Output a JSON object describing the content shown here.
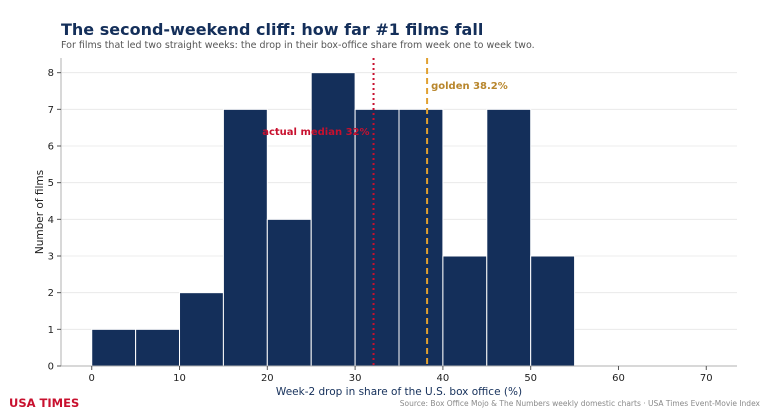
{
  "header": {
    "title": "The second-weekend cliff: how far #1 films fall",
    "subtitle": "For films that led two straight weeks: the drop in their box-office share from week one to week two."
  },
  "footer": {
    "brand": "USA TIMES",
    "source": "Source: Box Office Mojo & The Numbers weekly domestic charts · USA Times Event-Movie Index"
  },
  "colors": {
    "bars": "#142f5a",
    "median": "#c8102e",
    "golden": "#e0a030",
    "golden_text": "#b8862c",
    "grid": "#e6e6e6",
    "xlabel": "#142f5a"
  },
  "chart_data": {
    "type": "bar",
    "bins": [
      {
        "start": 0,
        "end": 5,
        "count": 1
      },
      {
        "start": 5,
        "end": 10,
        "count": 1
      },
      {
        "start": 10,
        "end": 15,
        "count": 2
      },
      {
        "start": 15,
        "end": 20,
        "count": 7
      },
      {
        "start": 20,
        "end": 25,
        "count": 4
      },
      {
        "start": 25,
        "end": 30,
        "count": 8
      },
      {
        "start": 30,
        "end": 35,
        "count": 7
      },
      {
        "start": 35,
        "end": 40,
        "count": 7
      },
      {
        "start": 40,
        "end": 45,
        "count": 3
      },
      {
        "start": 45,
        "end": 50,
        "count": 7
      },
      {
        "start": 50,
        "end": 55,
        "count": 3
      }
    ],
    "xlabel": "Week-2 drop in share of the U.S. box office (%)",
    "ylabel": "Number of films",
    "xlim": [
      -3.5,
      73.5
    ],
    "ylim": [
      0,
      8.4
    ],
    "xticks": [
      0,
      10,
      20,
      30,
      40,
      50,
      60,
      70
    ],
    "yticks": [
      0,
      1,
      2,
      3,
      4,
      5,
      6,
      7,
      8
    ],
    "grid": true,
    "annotations": [
      {
        "kind": "median",
        "x": 32.1,
        "label": "actual median 32%"
      },
      {
        "kind": "golden",
        "x": 38.2,
        "label": "golden 38.2%"
      }
    ]
  }
}
